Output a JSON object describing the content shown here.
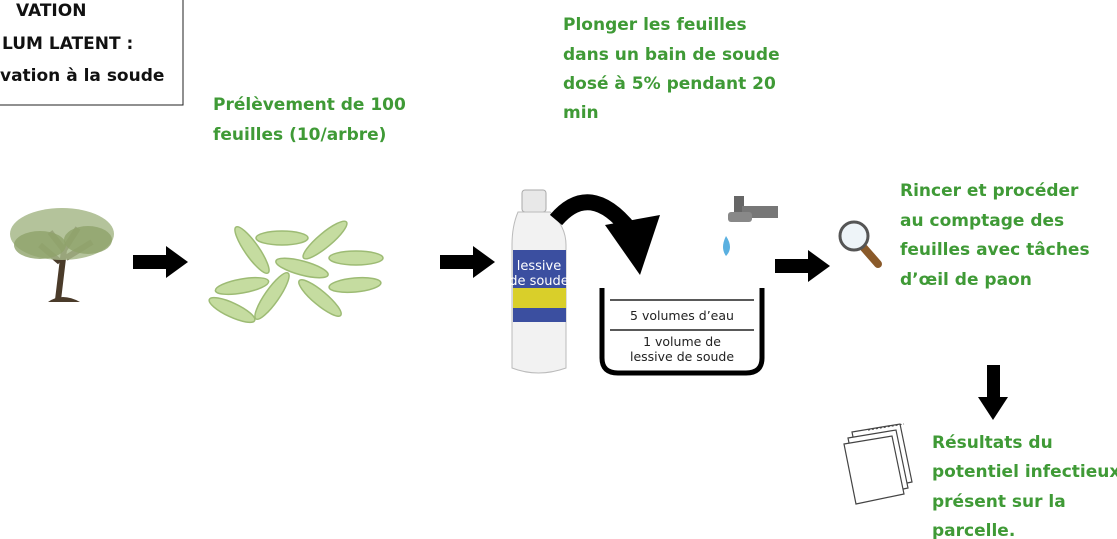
{
  "header": {
    "lines": [
      "VATION",
      "LUM LATENT :",
      "vation à la soude"
    ]
  },
  "steps": [
    {
      "lines": [
        "Prélèvement de 100",
        "feuilles (10/arbre)"
      ]
    },
    {
      "lines": [
        "Plonger les feuilles",
        "dans un bain de soude",
        "dosé à 5% pendant 20",
        "min"
      ]
    },
    {
      "lines": [
        "Rincer et procéder",
        "au comptage des",
        "feuilles avec tâches",
        "d’œil de paon"
      ]
    },
    {
      "lines": [
        "Résultats du",
        "potentiel infectieux",
        "présent sur la",
        "parcelle."
      ]
    }
  ],
  "bottle": {
    "label_lines": [
      "lessive",
      "de soude"
    ]
  },
  "tub": {
    "top": "5 volumes d’eau",
    "bottom_lines": [
      "1 volume de",
      "lessive de soude"
    ]
  }
}
